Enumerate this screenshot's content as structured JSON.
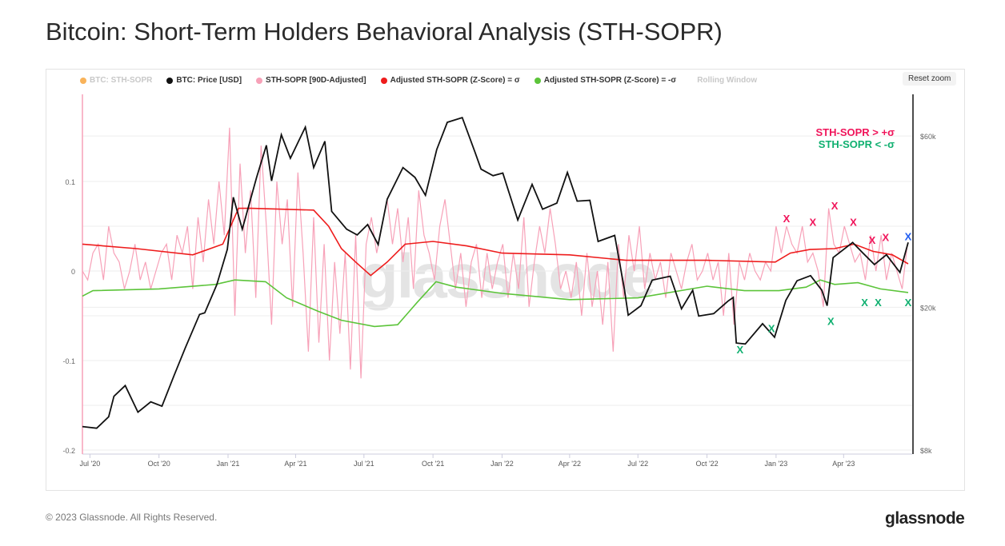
{
  "title": "Bitcoin: Short-Term Holders Behavioral Analysis (STH-SOPR)",
  "reset_zoom": "Reset zoom",
  "footer": "© 2023 Glassnode. All Rights Reserved.",
  "logo": "glassnode",
  "watermark": "glassnode",
  "colors": {
    "price": "#111111",
    "sopr": "#f7a1b8",
    "upper": "#ee1c1c",
    "lower": "#5cc43a",
    "red_x": "#f0145a",
    "green_x": "#10b070",
    "blue_x": "#1f5cf0"
  },
  "chart_data": {
    "type": "line",
    "title": "Bitcoin: Short-Term Holders Behavioral Analysis (STH-SOPR)",
    "legend": [
      {
        "label": "BTC: STH-SOPR",
        "color": "#f9b35a",
        "hidden": true
      },
      {
        "label": "BTC: Price [USD]",
        "color": "#111111"
      },
      {
        "label": "STH-SOPR [90D-Adjusted]",
        "color": "#f7a1b8"
      },
      {
        "label": "Adjusted STH-SOPR (Z-Score) = σ",
        "color": "#ee1c1c"
      },
      {
        "label": "Adjusted STH-SOPR (Z-Score) = -σ",
        "color": "#5cc43a"
      },
      {
        "label": "Rolling Window",
        "hidden": true
      }
    ],
    "annotations": {
      "upper": "STH-SOPR  > +σ",
      "lower": "STH-SOPR  < -σ"
    },
    "x_ticks": [
      [
        "Jul '20",
        "2020-07-01"
      ],
      [
        "Oct '20",
        "2020-10-01"
      ],
      [
        "Jan '21",
        "2021-01-01"
      ],
      [
        "Apr '21",
        "2021-04-01"
      ],
      [
        "Jul '21",
        "2021-07-01"
      ],
      [
        "Oct '21",
        "2021-10-01"
      ],
      [
        "Jan '22",
        "2022-01-01"
      ],
      [
        "Apr '22",
        "2022-04-01"
      ],
      [
        "Jul '22",
        "2022-07-01"
      ],
      [
        "Oct '22",
        "2022-10-01"
      ],
      [
        "Jan '23",
        "2023-01-01"
      ],
      [
        "Apr '23",
        "2023-04-01"
      ]
    ],
    "x_range": [
      "2020-06-21",
      "2023-06-26"
    ],
    "y_left": {
      "ticks": [
        [
          "0.1",
          0.1
        ],
        [
          "0",
          0
        ],
        [
          "-0.1",
          -0.1
        ],
        [
          "-0.2",
          -0.2
        ]
      ],
      "range": [
        -0.2,
        0.1
      ]
    },
    "y_right": {
      "scale": "log",
      "ticks": [
        [
          "$60k",
          60
        ],
        [
          "$20k",
          20
        ],
        [
          "$8k",
          8
        ]
      ],
      "unit": "thousand USD"
    },
    "price": [
      [
        "2020-06-21",
        9.3
      ],
      [
        "2020-07-10",
        9.2
      ],
      [
        "2020-07-26",
        9.9
      ],
      [
        "2020-08-02",
        11.3
      ],
      [
        "2020-08-17",
        12.1
      ],
      [
        "2020-09-03",
        10.2
      ],
      [
        "2020-09-20",
        10.9
      ],
      [
        "2020-10-05",
        10.6
      ],
      [
        "2020-10-21",
        12.9
      ],
      [
        "2020-11-05",
        15.4
      ],
      [
        "2020-11-24",
        19.1
      ],
      [
        "2020-12-01",
        19.3
      ],
      [
        "2020-12-17",
        23.1
      ],
      [
        "2020-12-31",
        29.0
      ],
      [
        "2021-01-08",
        40.5
      ],
      [
        "2021-01-20",
        33.0
      ],
      [
        "2021-02-08",
        46.0
      ],
      [
        "2021-02-21",
        56.5
      ],
      [
        "2021-02-28",
        45.0
      ],
      [
        "2021-03-13",
        60.5
      ],
      [
        "2021-03-25",
        52.0
      ],
      [
        "2021-04-14",
        63.5
      ],
      [
        "2021-04-25",
        49.0
      ],
      [
        "2021-05-10",
        58.0
      ],
      [
        "2021-05-19",
        37.0
      ],
      [
        "2021-06-08",
        33.0
      ],
      [
        "2021-06-22",
        31.8
      ],
      [
        "2021-07-06",
        34.0
      ],
      [
        "2021-07-20",
        29.9
      ],
      [
        "2021-08-01",
        40.0
      ],
      [
        "2021-08-22",
        49.0
      ],
      [
        "2021-09-07",
        46.0
      ],
      [
        "2021-09-21",
        41.0
      ],
      [
        "2021-10-06",
        55.0
      ],
      [
        "2021-10-20",
        65.5
      ],
      [
        "2021-11-09",
        67.5
      ],
      [
        "2021-11-26",
        54.0
      ],
      [
        "2021-12-04",
        48.5
      ],
      [
        "2021-12-20",
        46.5
      ],
      [
        "2022-01-02",
        47.3
      ],
      [
        "2022-01-22",
        35.0
      ],
      [
        "2022-02-10",
        44.0
      ],
      [
        "2022-02-24",
        37.5
      ],
      [
        "2022-03-15",
        39.0
      ],
      [
        "2022-03-29",
        47.5
      ],
      [
        "2022-04-11",
        39.5
      ],
      [
        "2022-04-28",
        39.7
      ],
      [
        "2022-05-09",
        30.5
      ],
      [
        "2022-05-31",
        31.7
      ],
      [
        "2022-06-13",
        22.4
      ],
      [
        "2022-06-18",
        19.0
      ],
      [
        "2022-07-05",
        20.2
      ],
      [
        "2022-07-20",
        23.8
      ],
      [
        "2022-08-13",
        24.4
      ],
      [
        "2022-08-28",
        19.8
      ],
      [
        "2022-09-12",
        22.3
      ],
      [
        "2022-09-20",
        18.9
      ],
      [
        "2022-10-10",
        19.2
      ],
      [
        "2022-10-29",
        20.8
      ],
      [
        "2022-11-05",
        21.3
      ],
      [
        "2022-11-09",
        15.9
      ],
      [
        "2022-11-21",
        15.8
      ],
      [
        "2022-12-14",
        18.0
      ],
      [
        "2022-12-30",
        16.5
      ],
      [
        "2023-01-14",
        20.9
      ],
      [
        "2023-01-29",
        23.7
      ],
      [
        "2023-02-16",
        24.5
      ],
      [
        "2023-03-03",
        22.3
      ],
      [
        "2023-03-10",
        20.2
      ],
      [
        "2023-03-18",
        27.5
      ],
      [
        "2023-04-13",
        30.3
      ],
      [
        "2023-04-26",
        28.4
      ],
      [
        "2023-05-12",
        26.3
      ],
      [
        "2023-05-28",
        28.0
      ],
      [
        "2023-06-15",
        25.0
      ],
      [
        "2023-06-26",
        30.3
      ]
    ],
    "sopr_90d_adjusted": {
      "start": "2020-06-21",
      "step_days": 7,
      "values": [
        0.0,
        -0.01,
        0.02,
        0.03,
        -0.01,
        0.05,
        0.02,
        0.01,
        -0.02,
        0.0,
        0.03,
        -0.01,
        0.01,
        -0.02,
        0.0,
        0.02,
        0.03,
        -0.01,
        0.04,
        0.02,
        0.05,
        -0.02,
        0.06,
        0.01,
        0.08,
        0.03,
        0.1,
        0.04,
        0.16,
        -0.05,
        0.12,
        0.02,
        0.09,
        -0.03,
        0.14,
        0.05,
        -0.06,
        0.1,
        0.03,
        0.08,
        -0.04,
        0.11,
        0.02,
        -0.09,
        0.06,
        -0.08,
        0.03,
        -0.1,
        0.01,
        -0.07,
        0.02,
        -0.11,
        0.04,
        -0.12,
        0.03,
        0.06,
        0.02,
        0.05,
        0.08,
        0.03,
        0.07,
        0.01,
        0.06,
        -0.02,
        0.09,
        0.04,
        0.02,
        -0.01,
        0.05,
        0.08,
        0.03,
        -0.02,
        0.02,
        -0.04,
        0.01,
        0.03,
        -0.03,
        0.02,
        -0.02,
        0.01,
        0.03,
        -0.03,
        0.02,
        -0.02,
        0.06,
        -0.04,
        0.01,
        0.05,
        0.02,
        0.07,
        0.03,
        -0.02,
        0.0,
        -0.03,
        0.01,
        -0.05,
        0.02,
        -0.04,
        0.0,
        -0.06,
        0.01,
        -0.09,
        0.03,
        -0.03,
        0.04,
        0.0,
        0.05,
        -0.02,
        0.02,
        -0.01,
        0.01,
        -0.03,
        0.02,
        0.0,
        -0.02,
        0.01,
        0.03,
        -0.01,
        0.0,
        0.02,
        -0.01,
        0.01,
        -0.05,
        0.02,
        -0.06,
        0.01,
        -0.01,
        0.02,
        0.0,
        -0.01,
        0.01,
        0.0,
        0.05,
        0.02,
        0.05,
        0.03,
        0.02,
        0.05,
        0.01,
        0.02,
        0.0,
        -0.04,
        0.07,
        0.03,
        0.02,
        0.05,
        0.03,
        0.01,
        0.02,
        -0.01,
        0.04,
        0.0,
        0.04,
        -0.01,
        0.02,
        0.0,
        -0.02,
        0.03
      ]
    },
    "z_plus_sigma": [
      [
        "2020-06-21",
        0.03
      ],
      [
        "2020-09-01",
        0.025
      ],
      [
        "2020-11-15",
        0.018
      ],
      [
        "2020-12-25",
        0.03
      ],
      [
        "2021-01-15",
        0.07
      ],
      [
        "2021-02-01",
        0.07
      ],
      [
        "2021-04-25",
        0.068
      ],
      [
        "2021-05-15",
        0.05
      ],
      [
        "2021-06-01",
        0.025
      ],
      [
        "2021-06-20",
        0.01
      ],
      [
        "2021-07-10",
        -0.005
      ],
      [
        "2021-08-01",
        0.01
      ],
      [
        "2021-08-25",
        0.03
      ],
      [
        "2021-10-01",
        0.033
      ],
      [
        "2021-11-15",
        0.028
      ],
      [
        "2022-01-01",
        0.02
      ],
      [
        "2022-04-01",
        0.018
      ],
      [
        "2022-06-15",
        0.012
      ],
      [
        "2022-07-15",
        0.012
      ],
      [
        "2022-10-01",
        0.012
      ],
      [
        "2022-12-31",
        0.01
      ],
      [
        "2023-01-20",
        0.02
      ],
      [
        "2023-02-15",
        0.024
      ],
      [
        "2023-03-20",
        0.025
      ],
      [
        "2023-04-15",
        0.03
      ],
      [
        "2023-05-10",
        0.022
      ],
      [
        "2023-06-05",
        0.018
      ],
      [
        "2023-06-26",
        0.008
      ]
    ],
    "z_minus_sigma": [
      [
        "2020-06-21",
        -0.028
      ],
      [
        "2020-07-05",
        -0.022
      ],
      [
        "2020-10-01",
        -0.02
      ],
      [
        "2020-12-15",
        -0.015
      ],
      [
        "2021-01-10",
        -0.01
      ],
      [
        "2021-02-20",
        -0.012
      ],
      [
        "2021-03-20",
        -0.03
      ],
      [
        "2021-05-01",
        -0.045
      ],
      [
        "2021-06-01",
        -0.055
      ],
      [
        "2021-07-15",
        -0.062
      ],
      [
        "2021-08-15",
        -0.06
      ],
      [
        "2021-09-10",
        -0.035
      ],
      [
        "2021-10-05",
        -0.012
      ],
      [
        "2021-11-01",
        -0.018
      ],
      [
        "2022-01-01",
        -0.025
      ],
      [
        "2022-04-01",
        -0.032
      ],
      [
        "2022-07-01",
        -0.03
      ],
      [
        "2022-10-01",
        -0.017
      ],
      [
        "2022-11-20",
        -0.022
      ],
      [
        "2023-01-05",
        -0.022
      ],
      [
        "2023-02-10",
        -0.018
      ],
      [
        "2023-03-01",
        -0.01
      ],
      [
        "2023-03-20",
        -0.015
      ],
      [
        "2023-04-20",
        -0.013
      ],
      [
        "2023-05-20",
        -0.02
      ],
      [
        "2023-06-26",
        -0.024
      ]
    ],
    "markers": [
      {
        "type": "red",
        "label": "X",
        "date": "2023-01-15",
        "value": 0.059
      },
      {
        "type": "red",
        "label": "X",
        "date": "2023-02-19",
        "value": 0.055
      },
      {
        "type": "red",
        "label": "X",
        "date": "2023-03-20",
        "value": 0.073
      },
      {
        "type": "red",
        "label": "X",
        "date": "2023-04-14",
        "value": 0.055
      },
      {
        "type": "red",
        "label": "X",
        "date": "2023-05-09",
        "value": 0.035
      },
      {
        "type": "red",
        "label": "X",
        "date": "2023-05-27",
        "value": 0.038
      },
      {
        "type": "blue",
        "label": "X",
        "date": "2023-06-26",
        "value": 0.039
      },
      {
        "type": "green",
        "label": "X",
        "date": "2022-11-14",
        "value": -0.0875
      },
      {
        "type": "green",
        "label": "X",
        "date": "2022-12-26",
        "value": -0.064
      },
      {
        "type": "green",
        "label": "X",
        "date": "2023-03-15",
        "value": -0.056
      },
      {
        "type": "green",
        "label": "X",
        "date": "2023-04-29",
        "value": -0.035
      },
      {
        "type": "green",
        "label": "X",
        "date": "2023-05-17",
        "value": -0.035
      },
      {
        "type": "green",
        "label": "X",
        "date": "2023-06-26",
        "value": -0.035
      }
    ]
  }
}
